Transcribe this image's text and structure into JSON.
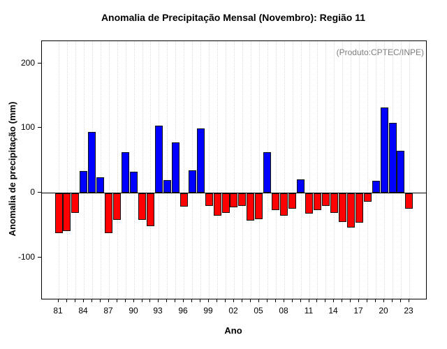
{
  "chart_data": {
    "type": "bar",
    "title": "Anomalia de Precipitação Mensal (Novembro): Região 11",
    "xlabel": "Ano",
    "ylabel": "Anomalia de precipitação (mm)",
    "annotation": "(Produto:CPTEC/INPE)",
    "years": [
      1981,
      1982,
      1983,
      1984,
      1985,
      1986,
      1987,
      1988,
      1989,
      1990,
      1991,
      1992,
      1993,
      1994,
      1995,
      1996,
      1997,
      1998,
      1999,
      2000,
      2001,
      2002,
      2003,
      2004,
      2005,
      2006,
      2007,
      2008,
      2009,
      2010,
      2011,
      2012,
      2013,
      2014,
      2015,
      2016,
      2017,
      2018,
      2019,
      2020,
      2021,
      2022,
      2023
    ],
    "values": [
      -62,
      -58,
      -30,
      33,
      94,
      24,
      -62,
      -41,
      63,
      32,
      -41,
      -51,
      104,
      19,
      78,
      -21,
      35,
      99,
      -19,
      -34,
      -30,
      -22,
      -19,
      -42,
      -40,
      63,
      -26,
      -35,
      -24,
      20,
      -31,
      -26,
      -19,
      -30,
      -44,
      -53,
      -45,
      -13,
      18,
      132,
      108,
      65,
      -24
    ],
    "x_tick_labels": [
      "81",
      "84",
      "87",
      "90",
      "93",
      "96",
      "99",
      "02",
      "05",
      "08",
      "11",
      "14",
      "17",
      "20",
      "23"
    ],
    "x_tick_interval_years": 3,
    "y_ticks": [
      {
        "value": -100,
        "label": "-100"
      },
      {
        "value": 0,
        "label": "0"
      },
      {
        "value": 100,
        "label": "100"
      },
      {
        "value": 200,
        "label": "200"
      }
    ],
    "ylim": [
      -164,
      234
    ],
    "grid": "vertical-dotted-per-year",
    "legend_position": "none",
    "colors": {
      "positive_bar": "#0000ff",
      "negative_bar": "#ff0000",
      "bar_border": "#111111",
      "annotation_text": "#7e7e7e",
      "gridline": "#d9d9d9",
      "axis": "#000000"
    }
  }
}
